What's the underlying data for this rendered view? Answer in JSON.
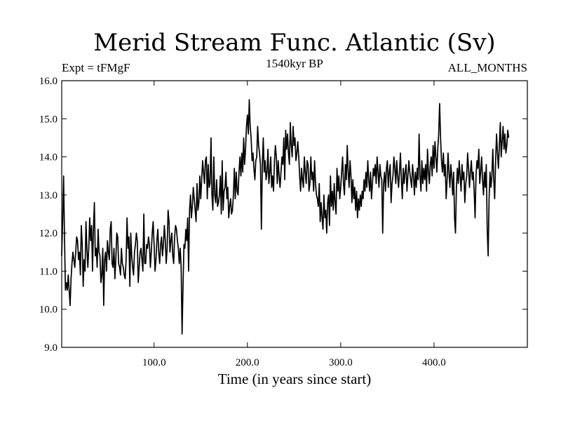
{
  "chart_data": {
    "type": "line",
    "title": "Merid Stream Func. Atlantic (Sv)",
    "subtitle": "1540kyr BP",
    "experiment_label": "Expt = tFMgF",
    "season_label": "ALL_MONTHS",
    "xlabel": "Time (in years since start)",
    "ylabel": "",
    "xlim": [
      1,
      500
    ],
    "ylim": [
      9.0,
      16.0
    ],
    "x_ticks": [
      100,
      200,
      300,
      400
    ],
    "x_tick_labels": [
      "100.0",
      "200.0",
      "300.0",
      "400.0"
    ],
    "y_ticks": [
      9,
      10,
      11,
      12,
      13,
      14,
      15,
      16
    ],
    "y_tick_labels": [
      "9.0",
      "10.0",
      "11.0",
      "12.0",
      "13.0",
      "14.0",
      "15.0",
      "16.0"
    ],
    "series": [
      {
        "name": "Merid Stream Func. Atlantic",
        "color": "#000000",
        "x_start": 1,
        "x_step": 1,
        "values": [
          11.4,
          12.3,
          13.5,
          11.9,
          10.5,
          10.7,
          10.5,
          10.9,
          10.5,
          10.1,
          10.8,
          11.2,
          11.5,
          11.3,
          11.1,
          11.5,
          11.9,
          11.8,
          11.3,
          11.5,
          10.9,
          12.2,
          11.7,
          10.6,
          11.3,
          11.0,
          12.3,
          11.6,
          11.1,
          11.6,
          12.4,
          11.8,
          12.2,
          11.0,
          12.1,
          12.8,
          11.4,
          11.6,
          11.1,
          12.1,
          11.5,
          11.4,
          10.7,
          10.9,
          11.6,
          10.1,
          11.3,
          11.5,
          11.0,
          11.8,
          11.5,
          11.3,
          12.1,
          12.3,
          11.2,
          11.1,
          11.6,
          10.8,
          11.3,
          12.0,
          11.9,
          11.2,
          11.1,
          10.9,
          11.6,
          11.2,
          11.1,
          10.9,
          10.8,
          11.3,
          12.4,
          11.6,
          11.9,
          10.6,
          12.0,
          11.4,
          11.1,
          10.9,
          11.5,
          11.7,
          12.0,
          11.8,
          10.7,
          11.1,
          11.5,
          11.6,
          11.3,
          11.0,
          12.5,
          11.2,
          11.2,
          11.7,
          11.6,
          11.9,
          11.7,
          11.1,
          11.5,
          12.0,
          12.3,
          11.7,
          11.0,
          11.3,
          11.8,
          12.1,
          11.5,
          11.2,
          11.7,
          11.9,
          11.4,
          11.7,
          12.2,
          11.8,
          11.2,
          11.6,
          12.6,
          12.3,
          11.5,
          11.8,
          12.0,
          11.4,
          11.2,
          11.9,
          12.2,
          12.1,
          11.8,
          11.6,
          11.2,
          11.6,
          11.1,
          9.35,
          10.6,
          11.7,
          11.6,
          12.1,
          11.8,
          12.4,
          11.0,
          12.6,
          13.0,
          12.4,
          12.7,
          13.2,
          12.9,
          12.6,
          12.3,
          13.3,
          12.6,
          12.8,
          13.5,
          12.9,
          13.4,
          13.9,
          13.6,
          13.3,
          13.9,
          14.0,
          12.9,
          13.8,
          13.2,
          13.3,
          14.5,
          13.0,
          12.6,
          14.0,
          13.0,
          12.8,
          13.4,
          12.7,
          12.8,
          13.0,
          13.5,
          12.5,
          13.9,
          12.6,
          13.1,
          13.2,
          13.6,
          12.9,
          13.2,
          12.4,
          12.7,
          12.9,
          12.5,
          12.6,
          13.0,
          13.7,
          12.9,
          13.6,
          13.1,
          13.0,
          13.6,
          14.0,
          13.5,
          14.1,
          13.6,
          14.5,
          13.8,
          14.2,
          14.8,
          15.1,
          14.6,
          15.5,
          14.8,
          14.5,
          13.9,
          14.1,
          13.7,
          13.4,
          13.9,
          14.0,
          14.8,
          14.3,
          14.1,
          13.8,
          12.1,
          13.8,
          14.5,
          13.6,
          13.9,
          13.4,
          13.6,
          14.2,
          13.3,
          13.6,
          14.0,
          13.2,
          13.5,
          13.1,
          13.9,
          14.3,
          14.0,
          13.3,
          13.9,
          13.5,
          13.2,
          13.6,
          14.0,
          13.8,
          14.5,
          13.4,
          14.7,
          14.2,
          14.6,
          14.1,
          13.8,
          14.9,
          14.3,
          14.0,
          14.8,
          14.3,
          14.5,
          13.9,
          14.1,
          14.4,
          14.0,
          13.5,
          13.1,
          13.7,
          13.4,
          13.2,
          14.0,
          13.6,
          13.3,
          13.9,
          13.8,
          13.1,
          13.3,
          14.0,
          13.4,
          13.6,
          13.1,
          13.9,
          13.3,
          13.0,
          12.9,
          12.7,
          13.3,
          12.3,
          12.8,
          12.4,
          12.1,
          13.0,
          12.4,
          12.6,
          12.0,
          12.8,
          13.0,
          12.2,
          13.5,
          12.7,
          13.1,
          12.6,
          13.3,
          12.8,
          12.5,
          13.7,
          13.1,
          13.5,
          12.9,
          13.2,
          13.6,
          14.0,
          13.3,
          13.0,
          13.8,
          13.4,
          14.3,
          13.6,
          13.2,
          13.9,
          13.5,
          12.8,
          13.4,
          12.9,
          13.2,
          12.6,
          13.1,
          12.4,
          12.9,
          12.6,
          13.0,
          12.7,
          13.1,
          12.9,
          13.4,
          13.1,
          13.6,
          13.2,
          13.9,
          13.4,
          13.1,
          13.6,
          12.9,
          13.3,
          13.7,
          13.5,
          13.8,
          13.3,
          14.0,
          13.6,
          13.2,
          13.8,
          13.5,
          13.4,
          12.0,
          13.3,
          13.6,
          13.1,
          13.7,
          13.9,
          13.2,
          13.6,
          13.8,
          12.8,
          13.3,
          13.5,
          14.0,
          13.7,
          13.3,
          13.9,
          13.5,
          13.2,
          13.6,
          14.1,
          13.4,
          12.9,
          13.7,
          13.3,
          13.6,
          13.8,
          13.1,
          13.5,
          13.9,
          13.6,
          13.4,
          13.2,
          13.8,
          13.5,
          13.0,
          13.6,
          13.2,
          13.7,
          13.4,
          14.6,
          13.5,
          13.1,
          13.9,
          13.3,
          13.7,
          13.4,
          13.8,
          13.1,
          14.2,
          13.6,
          13.3,
          13.8,
          14.0,
          13.5,
          14.3,
          13.7,
          14.4,
          14.0,
          13.6,
          14.2,
          14.6,
          15.4,
          14.5,
          13.9,
          13.6,
          14.1,
          13.5,
          13.8,
          12.9,
          13.4,
          14.1,
          13.6,
          13.2,
          13.8,
          13.5,
          13.0,
          13.6,
          12.4,
          12.0,
          13.2,
          13.7,
          13.3,
          13.9,
          13.5,
          13.1,
          13.8,
          13.4,
          13.6,
          12.8,
          13.3,
          13.5,
          14.1,
          13.7,
          13.2,
          13.6,
          13.9,
          13.4,
          13.6,
          13.1,
          12.4,
          13.5,
          13.9,
          13.7,
          14.2,
          13.3,
          13.6,
          14.0,
          13.4,
          13.0,
          13.6,
          13.2,
          13.8,
          12.1,
          11.4,
          12.9,
          13.6,
          13.2,
          13.5,
          14.2,
          13.4,
          12.9,
          13.9,
          14.6,
          14.1,
          13.7,
          14.3,
          14.9,
          14.0,
          14.4,
          14.8,
          14.2,
          14.6,
          14.1,
          14.3,
          14.7,
          14.5
        ]
      }
    ]
  }
}
